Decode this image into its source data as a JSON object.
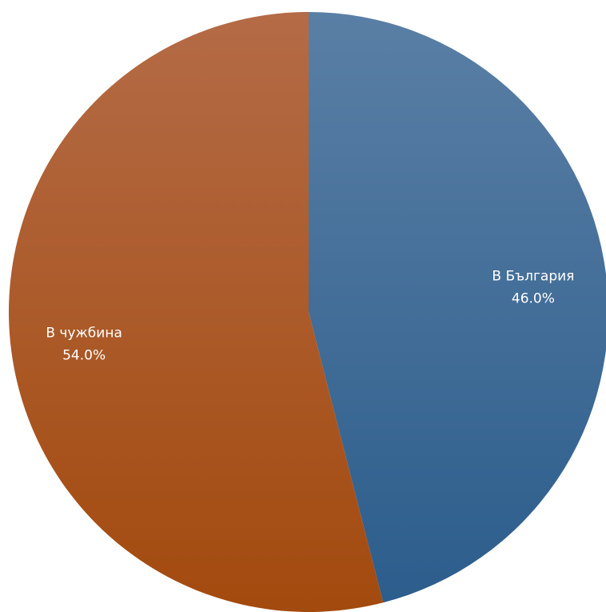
{
  "chart_data": {
    "type": "pie",
    "title": "",
    "slices": [
      {
        "label": "В България",
        "value": 46.0,
        "display": "46.0%",
        "color": "#3e6c9a"
      },
      {
        "label": "В чужбина",
        "value": 54.0,
        "display": "54.0%",
        "color": "#a95a20"
      }
    ],
    "start_angle_deg": 0,
    "direction": "clockwise",
    "legend": "none",
    "data_labels": "inside, label and percent"
  }
}
